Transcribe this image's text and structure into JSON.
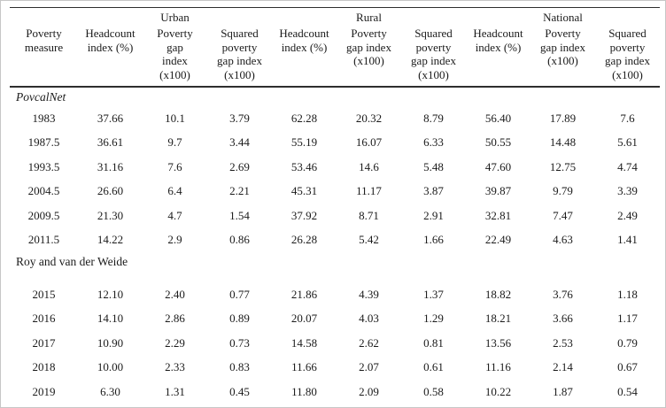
{
  "page": {
    "background": "#ffffff",
    "rule_color": "#2e2e2e",
    "text_color": "#1b1b1b"
  },
  "table": {
    "columns": [
      {
        "group": "",
        "label": "Poverty\nmeasure"
      },
      {
        "group": "",
        "label": "Headcount\nindex (%)"
      },
      {
        "group": "Urban",
        "label": "Poverty\ngap\nindex\n(x100)"
      },
      {
        "group": "",
        "label": "Squared\npoverty\ngap index\n(x100)"
      },
      {
        "group": "",
        "label": "Headcount\nindex (%)"
      },
      {
        "group": "Rural",
        "label": "Poverty\ngap index\n(x100)"
      },
      {
        "group": "",
        "label": "Squared\npoverty\ngap index\n(x100)"
      },
      {
        "group": "",
        "label": "Headcount\nindex (%)"
      },
      {
        "group": "National",
        "label": "Poverty\ngap index\n(x100)"
      },
      {
        "group": "",
        "label": "Squared\npoverty\ngap index\n(x100)"
      }
    ],
    "sections": [
      {
        "title": "PovcalNet",
        "italic": true,
        "gap_after_title": false,
        "rows": [
          [
            "1983",
            "37.66",
            "10.1",
            "3.79",
            "62.28",
            "20.32",
            "8.79",
            "56.40",
            "17.89",
            "7.6"
          ],
          [
            "1987.5",
            "36.61",
            "9.7",
            "3.44",
            "55.19",
            "16.07",
            "6.33",
            "50.55",
            "14.48",
            "5.61"
          ],
          [
            "1993.5",
            "31.16",
            "7.6",
            "2.69",
            "53.46",
            "14.6",
            "5.48",
            "47.60",
            "12.75",
            "4.74"
          ],
          [
            "2004.5",
            "26.60",
            "6.4",
            "2.21",
            "45.31",
            "11.17",
            "3.87",
            "39.87",
            "9.79",
            "3.39"
          ],
          [
            "2009.5",
            "21.30",
            "4.7",
            "1.54",
            "37.92",
            "8.71",
            "2.91",
            "32.81",
            "7.47",
            "2.49"
          ],
          [
            "2011.5",
            "14.22",
            "2.9",
            "0.86",
            "26.28",
            "5.42",
            "1.66",
            "22.49",
            "4.63",
            "1.41"
          ]
        ]
      },
      {
        "title": "Roy and van der Weide",
        "italic": false,
        "gap_after_title": true,
        "rows": [
          [
            "2015",
            "12.10",
            "2.40",
            "0.77",
            "21.86",
            "4.39",
            "1.37",
            "18.82",
            "3.76",
            "1.18"
          ],
          [
            "2016",
            "14.10",
            "2.86",
            "0.89",
            "20.07",
            "4.03",
            "1.29",
            "18.21",
            "3.66",
            "1.17"
          ],
          [
            "2017",
            "10.90",
            "2.29",
            "0.73",
            "14.58",
            "2.62",
            "0.81",
            "13.56",
            "2.53",
            "0.79"
          ],
          [
            "2018",
            "10.00",
            "2.33",
            "0.83",
            "11.66",
            "2.07",
            "0.61",
            "11.16",
            "2.14",
            "0.67"
          ],
          [
            "2019",
            "6.30",
            "1.31",
            "0.45",
            "11.80",
            "2.09",
            "0.58",
            "10.22",
            "1.87",
            "0.54"
          ]
        ]
      }
    ]
  }
}
